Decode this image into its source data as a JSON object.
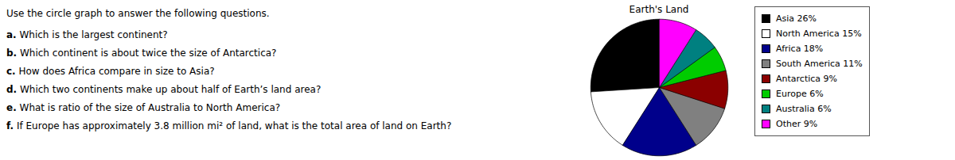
{
  "chart_data": {
    "type": "pie",
    "title": "Earth's Land",
    "categories": [
      "Asia 26%",
      "North America 15%",
      "Africa 18%",
      "South America 11%",
      "Antarctica 9%",
      "Europe 6%",
      "Australia 6%",
      "Other 9%"
    ],
    "values": [
      26,
      15,
      18,
      11,
      9,
      6,
      6,
      9
    ],
    "colors": [
      "#000000",
      "#ffffff",
      "#00008b",
      "#808080",
      "#8b0000",
      "#00cc00",
      "#008080",
      "#ff00ff"
    ],
    "legend": "right",
    "annotations": [
      "Use the circle graph to answer the following questions.",
      "a. Which is the largest continent?",
      "b. Which continent is about twice the size of Antarctica?",
      "c. How does Africa compare in size to Asia?",
      "d. Which two continents make up about half of Earth’s land area?",
      "e. What is ratio of the size of Australia to North America?",
      "f. If Europe has approximately 3.8 million mi² of land, what is the total area of land on Earth?"
    ]
  }
}
